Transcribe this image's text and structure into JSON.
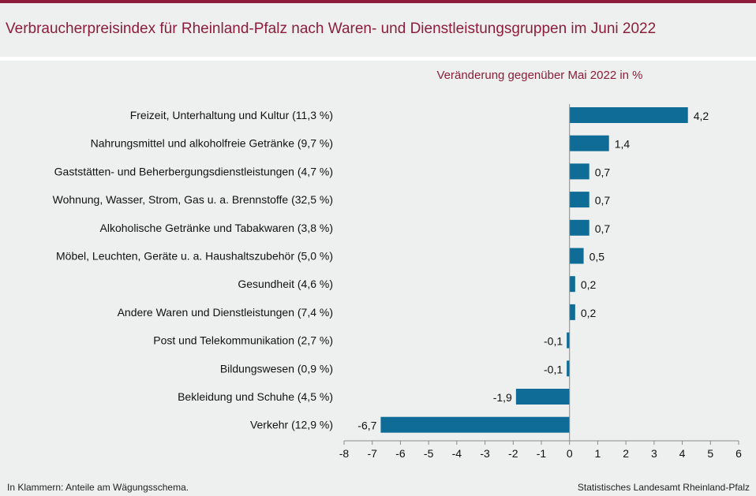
{
  "title": "Verbraucherpreisindex für Rheinland-Pfalz nach Waren- und Dienstleistungsgruppen im Juni 2022",
  "footer": {
    "note": "In Klammern: Anteile am Wägungsschema.",
    "source": "Statistisches Landesamt Rheinland-Pfalz"
  },
  "colors": {
    "accent": "#8c1d3c",
    "bar": "#0e6c96",
    "background": "#eef0ef"
  },
  "chart_data": {
    "type": "bar",
    "orientation": "horizontal",
    "subtitle": "Veränderung  gegenüber Mai 2022 in %",
    "categories": [
      "Freizeit, Unterhaltung und Kultur (11,3 %)",
      "Nahrungsmittel und alkoholfreie Getränke (9,7 %)",
      "Gaststätten- und Beherbergungsdienstleistungen (4,7 %)",
      "Wohnung, Wasser, Strom, Gas u. a. Brennstoffe (32,5 %)",
      "Alkoholische Getränke und Tabakwaren (3,8 %)",
      "Möbel, Leuchten, Geräte u. a. Haushaltszubehör (5,0 %)",
      "Gesundheit (4,6 %)",
      "Andere Waren und Dienstleistungen (7,4 %)",
      "Post und Telekommunikation (2,7 %)",
      "Bildungswesen (0,9 %)",
      "Bekleidung und Schuhe (4,5 %)",
      "Verkehr (12,9 %)"
    ],
    "values": [
      4.2,
      1.4,
      0.7,
      0.7,
      0.7,
      0.5,
      0.2,
      0.2,
      -0.1,
      -0.1,
      -1.9,
      -6.7
    ],
    "value_labels": [
      "4,2",
      "1,4",
      "0,7",
      "0,7",
      "0,7",
      "0,5",
      "0,2",
      "0,2",
      "-0,1",
      "-0,1",
      "-1,9",
      "-6,7"
    ],
    "xlim": [
      -8,
      6
    ],
    "xticks": [
      -8,
      -7,
      -6,
      -5,
      -4,
      -3,
      -2,
      -1,
      0,
      1,
      2,
      3,
      4,
      5,
      6
    ],
    "xtick_labels": [
      "-8",
      "-7",
      "-6",
      "-5",
      "-4",
      "-3",
      "-2",
      "-1",
      "0",
      "1",
      "2",
      "3",
      "4",
      "5",
      "6"
    ],
    "grid": false
  }
}
